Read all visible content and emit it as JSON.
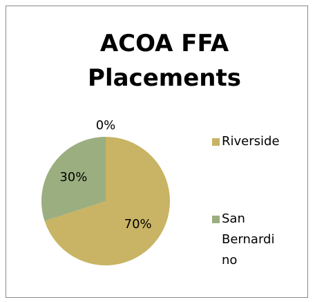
{
  "chart_data": {
    "type": "pie",
    "title": "ACOA FFA Placements",
    "categories": [
      "Riverside",
      "San Bernardino",
      null
    ],
    "values": [
      70,
      30,
      0
    ],
    "value_labels": [
      "70%",
      "30%",
      "0%"
    ],
    "colors": [
      "#c8b464",
      "#9bae80",
      "#8fa6c8"
    ],
    "legend": "right"
  }
}
